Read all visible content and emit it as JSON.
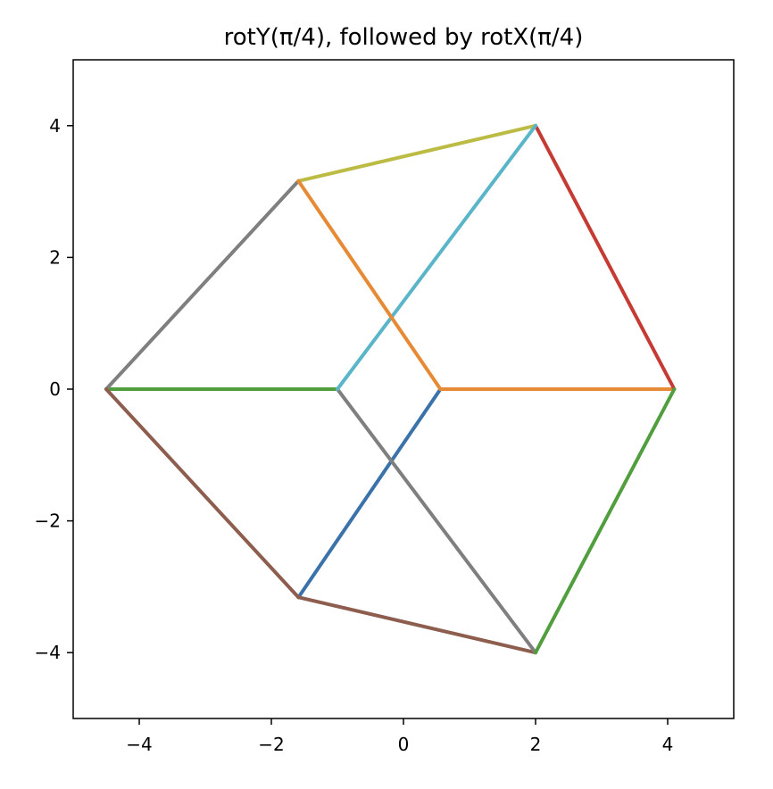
{
  "chart_data": {
    "type": "line",
    "title": "rotY(π/4), followed by rotX(π/4)",
    "xlabel": "",
    "ylabel": "",
    "xlim": [
      -5,
      5
    ],
    "ylim": [
      -5,
      5
    ],
    "grid": false,
    "x_ticks": [
      -4,
      -2,
      0,
      2,
      4
    ],
    "y_ticks": [
      -4,
      -2,
      0,
      2,
      4
    ],
    "x_tick_labels": [
      "−4",
      "−2",
      "0",
      "2",
      "4"
    ],
    "y_tick_labels": [
      "−4",
      "−2",
      "0",
      "2",
      "4"
    ],
    "segments": [
      {
        "x": [
          -1.59,
          0.56
        ],
        "y": [
          -3.16,
          0
        ],
        "color": "#3c72aa"
      },
      {
        "x": [
          0.56,
          4.1
        ],
        "y": [
          0,
          0
        ],
        "color": "#e68a35"
      },
      {
        "x": [
          -4.5,
          -1.0
        ],
        "y": [
          0,
          0
        ],
        "color": "#519e3e"
      },
      {
        "x": [
          2.0,
          4.1
        ],
        "y": [
          4.0,
          0
        ],
        "color": "#c53a32"
      },
      {
        "x": [
          -1.59,
          2.0
        ],
        "y": [
          -3.16,
          -4.0
        ],
        "color": "#8d5d4e"
      },
      {
        "x": [
          -4.5,
          -1.59
        ],
        "y": [
          0,
          3.16
        ],
        "color": "#7f7f7f"
      },
      {
        "x": [
          -1.0,
          2.0
        ],
        "y": [
          0,
          -4.0
        ],
        "color": "#7f7f7f"
      },
      {
        "x": [
          -1.59,
          2.0
        ],
        "y": [
          3.16,
          4.0
        ],
        "color": "#bcbc45"
      },
      {
        "x": [
          -1.0,
          2.0
        ],
        "y": [
          0,
          4.0
        ],
        "color": "#5ab5c8"
      },
      {
        "x": [
          -4.5,
          -1.59
        ],
        "y": [
          0,
          -3.16
        ],
        "color": "#8d5d4e"
      },
      {
        "x": [
          2.0,
          4.1
        ],
        "y": [
          -4.0,
          0
        ],
        "color": "#519e3e"
      },
      {
        "x": [
          -1.59,
          0.56
        ],
        "y": [
          3.16,
          0
        ],
        "color": "#e68a35"
      }
    ]
  }
}
